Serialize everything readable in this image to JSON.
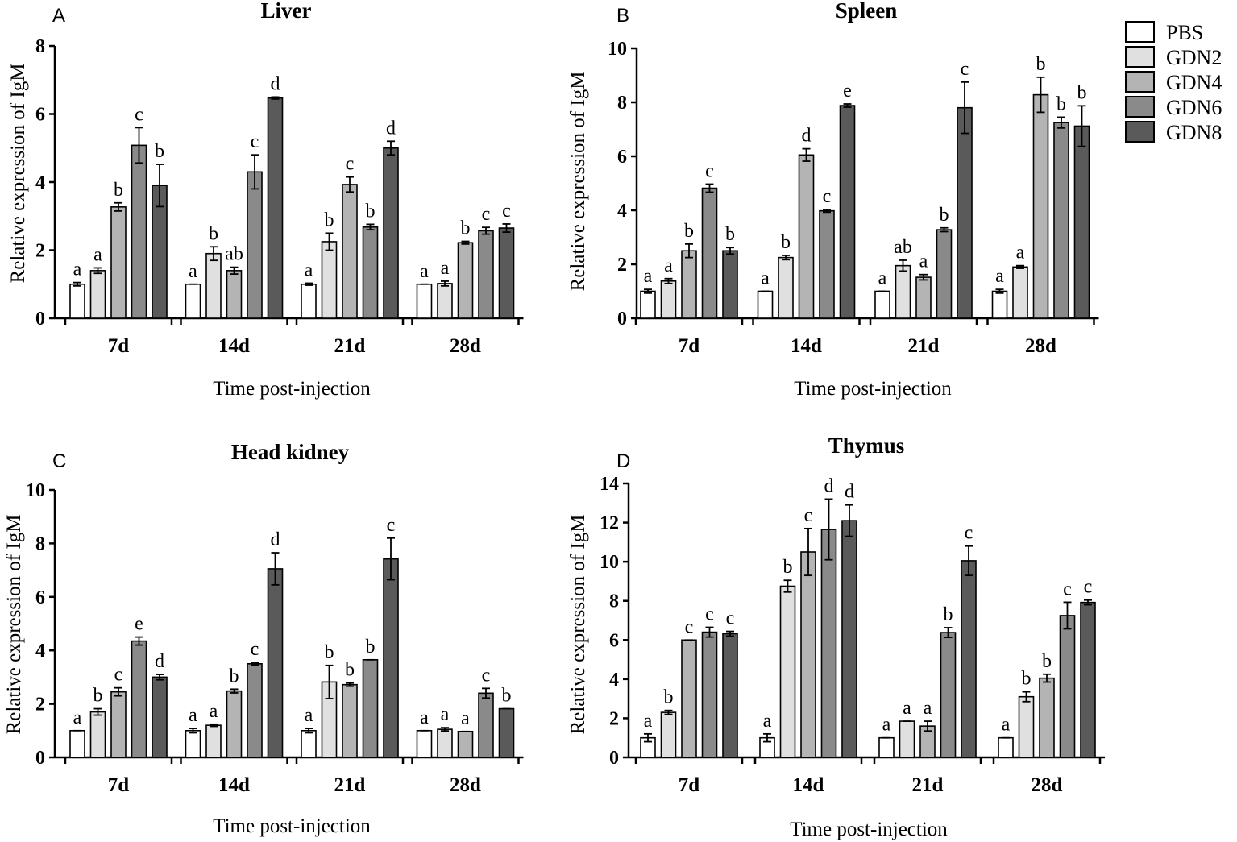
{
  "legend": [
    {
      "name": "PBS",
      "color": "#ffffff"
    },
    {
      "name": "GDN2",
      "color": "#e0e0e0"
    },
    {
      "name": "GDN4",
      "color": "#b4b4b4"
    },
    {
      "name": "GDN6",
      "color": "#8a8a8a"
    },
    {
      "name": "GDN8",
      "color": "#5a5a5a"
    }
  ],
  "chart_data": [
    {
      "panel": "A",
      "type": "bar",
      "title": "Liver",
      "xlabel": "Time post-injection",
      "ylabel": "Relative expression of IgM",
      "ylim": [
        0,
        8
      ],
      "yticks": [
        0,
        2,
        4,
        6,
        8
      ],
      "categories": [
        "7d",
        "14d",
        "21d",
        "28d"
      ],
      "series": [
        {
          "name": "PBS",
          "values": [
            1.0,
            1.0,
            1.0,
            1.0
          ],
          "errors": [
            0.05,
            0.0,
            0.03,
            0.0
          ],
          "labels": [
            "a",
            "a",
            "a",
            "a"
          ]
        },
        {
          "name": "GDN2",
          "values": [
            1.4,
            1.9,
            2.25,
            1.02
          ],
          "errors": [
            0.08,
            0.2,
            0.25,
            0.07
          ],
          "labels": [
            "a",
            "b",
            "b",
            "a"
          ]
        },
        {
          "name": "GDN4",
          "values": [
            3.27,
            1.4,
            3.93,
            2.22
          ],
          "errors": [
            0.12,
            0.1,
            0.22,
            0.04
          ],
          "labels": [
            "b",
            "ab",
            "c",
            "b"
          ]
        },
        {
          "name": "GDN6",
          "values": [
            5.08,
            4.3,
            2.68,
            2.57
          ],
          "errors": [
            0.52,
            0.5,
            0.08,
            0.1
          ],
          "labels": [
            "c",
            "c",
            "b",
            "c"
          ]
        },
        {
          "name": "GDN8",
          "values": [
            3.9,
            6.47,
            5.0,
            2.65
          ],
          "errors": [
            0.62,
            0.03,
            0.2,
            0.12
          ],
          "labels": [
            "b",
            "d",
            "d",
            "c"
          ]
        }
      ]
    },
    {
      "panel": "B",
      "type": "bar",
      "title": "Spleen",
      "xlabel": "Time post-injection",
      "ylabel": "Relative expression of IgM",
      "ylim": [
        0,
        10
      ],
      "yticks": [
        0,
        2,
        4,
        6,
        8,
        10
      ],
      "categories": [
        "7d",
        "14d",
        "21d",
        "28d"
      ],
      "series": [
        {
          "name": "PBS",
          "values": [
            1.0,
            1.0,
            1.0,
            1.0
          ],
          "errors": [
            0.07,
            0.0,
            0.0,
            0.07
          ],
          "labels": [
            "a",
            "a",
            "a",
            "a"
          ]
        },
        {
          "name": "GDN2",
          "values": [
            1.38,
            2.25,
            1.95,
            1.9
          ],
          "errors": [
            0.09,
            0.08,
            0.2,
            0.05
          ],
          "labels": [
            "a",
            "b",
            "ab",
            "a"
          ]
        },
        {
          "name": "GDN4",
          "values": [
            2.5,
            6.05,
            1.52,
            8.28
          ],
          "errors": [
            0.25,
            0.23,
            0.1,
            0.65
          ],
          "labels": [
            "b",
            "d",
            "a",
            "b"
          ]
        },
        {
          "name": "GDN6",
          "values": [
            4.82,
            3.98,
            3.28,
            7.25
          ],
          "errors": [
            0.15,
            0.05,
            0.07,
            0.2
          ],
          "labels": [
            "c",
            "c",
            "b",
            "b"
          ]
        },
        {
          "name": "GDN8",
          "values": [
            2.5,
            7.88,
            7.8,
            7.12
          ],
          "errors": [
            0.12,
            0.06,
            0.95,
            0.75
          ],
          "labels": [
            "b",
            "e",
            "c",
            "b"
          ]
        }
      ]
    },
    {
      "panel": "C",
      "type": "bar",
      "title": "Head kidney",
      "xlabel": "Time post-injection",
      "ylabel": "Relative expression of IgM",
      "ylim": [
        0,
        10
      ],
      "yticks": [
        0,
        2,
        4,
        6,
        8,
        10
      ],
      "categories": [
        "7d",
        "14d",
        "21d",
        "28d"
      ],
      "series": [
        {
          "name": "PBS",
          "values": [
            1.0,
            1.0,
            1.0,
            1.0
          ],
          "errors": [
            0.0,
            0.08,
            0.08,
            0.0
          ],
          "labels": [
            "a",
            "a",
            "a",
            "a"
          ]
        },
        {
          "name": "GDN2",
          "values": [
            1.7,
            1.2,
            2.82,
            1.05
          ],
          "errors": [
            0.12,
            0.04,
            0.62,
            0.06
          ],
          "labels": [
            "b",
            "a",
            "b",
            "a"
          ]
        },
        {
          "name": "GDN4",
          "values": [
            2.45,
            2.48,
            2.72,
            0.97
          ],
          "errors": [
            0.15,
            0.07,
            0.06,
            0.0
          ],
          "labels": [
            "c",
            "b",
            "b",
            "a"
          ]
        },
        {
          "name": "GDN6",
          "values": [
            4.35,
            3.5,
            3.65,
            2.4
          ],
          "errors": [
            0.15,
            0.05,
            0.0,
            0.18
          ],
          "labels": [
            "e",
            "c",
            "b",
            "c"
          ]
        },
        {
          "name": "GDN8",
          "values": [
            3.0,
            7.05,
            7.42,
            1.82
          ],
          "errors": [
            0.1,
            0.6,
            0.78,
            0.0
          ],
          "labels": [
            "d",
            "d",
            "c",
            "b"
          ]
        }
      ]
    },
    {
      "panel": "D",
      "type": "bar",
      "title": "Thymus",
      "xlabel": "Time post-injection",
      "ylabel": "Relative expression of IgM",
      "ylim": [
        0,
        14
      ],
      "yticks": [
        0,
        2,
        4,
        6,
        8,
        10,
        12,
        14
      ],
      "categories": [
        "7d",
        "14d",
        "21d",
        "28d"
      ],
      "series": [
        {
          "name": "PBS",
          "values": [
            1.0,
            1.0,
            1.0,
            1.0
          ],
          "errors": [
            0.2,
            0.2,
            0.0,
            0.0
          ],
          "labels": [
            "a",
            "a",
            "a",
            "a"
          ]
        },
        {
          "name": "GDN2",
          "values": [
            2.3,
            8.75,
            1.85,
            3.1
          ],
          "errors": [
            0.1,
            0.3,
            0.0,
            0.25
          ],
          "labels": [
            "b",
            "b",
            "a",
            "b"
          ]
        },
        {
          "name": "GDN4",
          "values": [
            6.0,
            10.5,
            1.6,
            4.05
          ],
          "errors": [
            0.0,
            1.2,
            0.25,
            0.2
          ],
          "labels": [
            "c",
            "c",
            "a",
            "b"
          ]
        },
        {
          "name": "GDN6",
          "values": [
            6.4,
            11.65,
            6.38,
            7.25
          ],
          "errors": [
            0.25,
            1.55,
            0.25,
            0.68
          ],
          "labels": [
            "c",
            "d",
            "b",
            "c"
          ]
        },
        {
          "name": "GDN8",
          "values": [
            6.32,
            12.1,
            10.05,
            7.92
          ],
          "errors": [
            0.12,
            0.8,
            0.75,
            0.12
          ],
          "labels": [
            "c",
            "d",
            "c",
            "c"
          ]
        }
      ]
    }
  ]
}
